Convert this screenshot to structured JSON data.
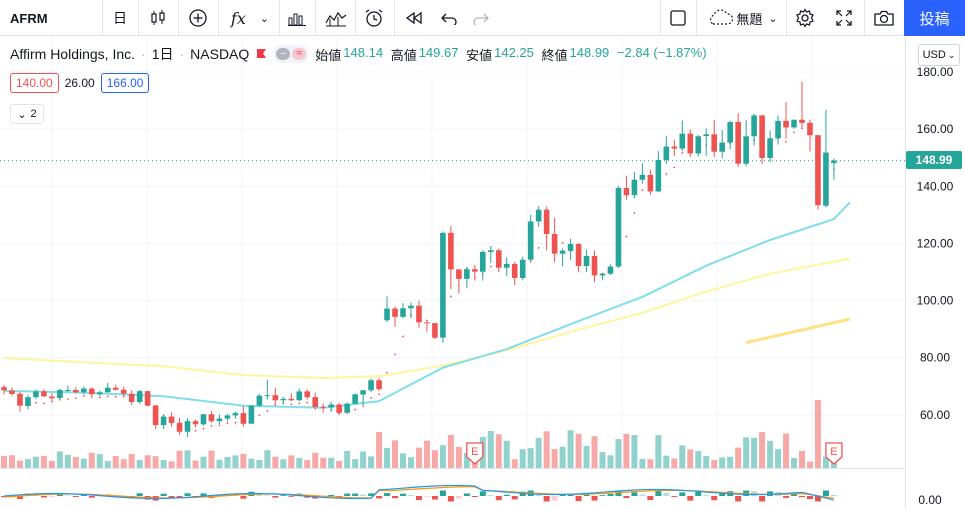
{
  "toolbar": {
    "symbol": "AFRM",
    "interval": "日",
    "indicators_label": "fx",
    "layout_name": "無題",
    "publish_label": "投稿"
  },
  "legend": {
    "name": "Affirm Holdings, Inc.",
    "interval": "1日",
    "exchange": "NASDAQ",
    "open_label": "始値",
    "open": "148.14",
    "high_label": "高値",
    "high": "149.67",
    "low_label": "安値",
    "low": "142.25",
    "close_label": "終値",
    "close": "148.99",
    "change": "−2.84 (−1.87%)"
  },
  "indicator_inputs": [
    "140.00",
    "26.00",
    "166.00"
  ],
  "collapsed_count": "2",
  "currency": "USD",
  "last_price": "148.99",
  "colors": {
    "up": "#26a69a",
    "down": "#ef5350",
    "accent": "#2962ff",
    "ma_fast": "#80deea",
    "ma_slow": "#fff59d",
    "ma_long": "#ffe082"
  },
  "chart_data": {
    "type": "candlestick",
    "y_ticks": [
      "180.00",
      "160.00",
      "140.00",
      "120.00",
      "100.00",
      "80.00",
      "60.00"
    ],
    "ylim": [
      44,
      183
    ],
    "osc_tick": "0.00",
    "candles": [
      [
        69.7,
        70.5,
        67.2,
        68.6
      ],
      [
        68.5,
        69.6,
        66.7,
        67.3
      ],
      [
        67.4,
        68.1,
        61.1,
        63.2
      ],
      [
        63.1,
        67.1,
        62.0,
        66.2
      ],
      [
        66.2,
        68.8,
        65.5,
        68.2
      ],
      [
        68.2,
        69.0,
        66.1,
        66.5
      ],
      [
        66.4,
        67.6,
        64.9,
        65.8
      ],
      [
        65.9,
        69.2,
        65.4,
        68.7
      ],
      [
        68.7,
        70.2,
        68.0,
        68.7
      ],
      [
        68.7,
        69.7,
        67.5,
        67.9
      ],
      [
        67.9,
        70.0,
        67.3,
        69.2
      ],
      [
        69.2,
        69.6,
        66.6,
        67.2
      ],
      [
        67.2,
        68.5,
        66.6,
        67.9
      ],
      [
        67.9,
        71.2,
        67.8,
        69.5
      ],
      [
        69.5,
        70.6,
        68.5,
        68.8
      ],
      [
        68.8,
        69.8,
        66.4,
        67.4
      ],
      [
        67.4,
        68.6,
        63.4,
        64.5
      ],
      [
        64.5,
        68.8,
        63.8,
        68.3
      ],
      [
        68.3,
        68.4,
        63.0,
        63.2
      ],
      [
        63.3,
        63.4,
        55.0,
        56.4
      ],
      [
        56.4,
        60.2,
        55.1,
        59.4
      ],
      [
        59.4,
        60.9,
        55.9,
        57.2
      ],
      [
        57.2,
        58.9,
        53.1,
        54.1
      ],
      [
        54.1,
        58.8,
        52.3,
        57.8
      ],
      [
        57.8,
        58.3,
        55.7,
        56.7
      ],
      [
        56.7,
        60.3,
        56.2,
        60.2
      ],
      [
        60.2,
        61.3,
        57.2,
        57.8
      ],
      [
        57.8,
        60.1,
        56.8,
        58.7
      ],
      [
        58.7,
        60.4,
        57.8,
        59.8
      ],
      [
        59.8,
        61.2,
        58.6,
        60.6
      ],
      [
        60.6,
        63.1,
        55.9,
        56.9
      ],
      [
        56.9,
        63.4,
        56.9,
        63.2
      ],
      [
        63.2,
        67.3,
        62.9,
        66.7
      ],
      [
        66.6,
        72.3,
        65.4,
        66.9
      ],
      [
        66.9,
        69.5,
        63.2,
        65.1
      ],
      [
        65.1,
        66.3,
        63.6,
        65.6
      ],
      [
        65.6,
        67.5,
        64.8,
        65.1
      ],
      [
        65.1,
        69.2,
        64.8,
        68.2
      ],
      [
        68.2,
        68.9,
        65.4,
        66.2
      ],
      [
        66.2,
        67.8,
        61.7,
        62.7
      ],
      [
        62.7,
        64.0,
        60.8,
        62.6
      ],
      [
        62.6,
        64.6,
        61.1,
        63.6
      ],
      [
        63.6,
        64.2,
        60.4,
        60.7
      ],
      [
        60.7,
        64.4,
        60.7,
        63.9
      ],
      [
        63.9,
        67.5,
        63.6,
        67.2
      ],
      [
        67.1,
        68.6,
        63.5,
        68.6
      ],
      [
        68.6,
        72.7,
        68.0,
        72.1
      ],
      [
        72.1,
        73.0,
        68.3,
        69.0
      ],
      [
        93.1,
        101.5,
        92.4,
        97.2
      ],
      [
        97.2,
        97.9,
        90.8,
        94.3
      ],
      [
        94.3,
        99.1,
        93.8,
        97.3
      ],
      [
        97.3,
        99.3,
        93.9,
        98.2
      ],
      [
        98.2,
        100.0,
        90.5,
        92.4
      ],
      [
        92.4,
        92.4,
        89.1,
        92.1
      ],
      [
        92.1,
        92.2,
        86.6,
        87.0
      ],
      [
        87.0,
        124.2,
        85.3,
        123.7
      ],
      [
        123.7,
        126.0,
        104.0,
        110.9
      ],
      [
        110.9,
        111.0,
        102.5,
        107.6
      ],
      [
        107.6,
        111.7,
        104.3,
        111.0
      ],
      [
        111.0,
        112.5,
        107.0,
        110.1
      ],
      [
        110.1,
        117.6,
        107.0,
        117.0
      ],
      [
        117.0,
        119.1,
        113.2,
        117.6
      ],
      [
        117.6,
        118.2,
        110.0,
        111.5
      ],
      [
        111.5,
        115.1,
        108.6,
        112.8
      ],
      [
        112.8,
        113.5,
        105.4,
        107.9
      ],
      [
        107.9,
        115.4,
        107.1,
        114.3
      ],
      [
        114.3,
        130.0,
        113.4,
        127.7
      ],
      [
        127.7,
        133.1,
        125.8,
        131.8
      ],
      [
        131.8,
        132.9,
        117.6,
        123.3
      ],
      [
        123.3,
        129.0,
        113.5,
        116.4
      ],
      [
        116.4,
        118.2,
        112.0,
        117.5
      ],
      [
        117.4,
        121.6,
        114.3,
        119.8
      ],
      [
        119.8,
        120.1,
        109.9,
        112.1
      ],
      [
        112.1,
        117.8,
        110.0,
        115.6
      ],
      [
        115.6,
        117.6,
        106.4,
        108.8
      ],
      [
        108.8,
        109.5,
        107.3,
        109.4
      ],
      [
        109.4,
        112.6,
        109.0,
        111.9
      ],
      [
        111.9,
        140.1,
        111.4,
        139.4
      ],
      [
        139.4,
        143.7,
        135.3,
        136.9
      ],
      [
        136.9,
        145.0,
        135.8,
        142.3
      ],
      [
        142.3,
        148.0,
        140.9,
        144.0
      ],
      [
        144.0,
        145.8,
        137.0,
        138.2
      ],
      [
        138.2,
        152.3,
        137.9,
        149.2
      ],
      [
        149.2,
        157.7,
        147.9,
        153.9
      ],
      [
        153.9,
        156.3,
        150.6,
        153.2
      ],
      [
        153.2,
        163.0,
        152.3,
        158.4
      ],
      [
        158.4,
        159.9,
        150.3,
        151.5
      ],
      [
        151.5,
        157.9,
        150.4,
        157.5
      ],
      [
        157.6,
        160.2,
        150.7,
        158.2
      ],
      [
        158.2,
        163.2,
        150.3,
        152.1
      ],
      [
        152.1,
        159.7,
        149.8,
        155.3
      ],
      [
        155.3,
        162.8,
        153.0,
        162.5
      ],
      [
        162.5,
        165.6,
        146.8,
        147.9
      ],
      [
        147.9,
        163.2,
        147.0,
        157.5
      ],
      [
        157.5,
        165.4,
        154.3,
        164.8
      ],
      [
        164.8,
        165.0,
        147.8,
        149.9
      ],
      [
        149.9,
        159.5,
        148.4,
        156.8
      ],
      [
        156.8,
        164.8,
        154.6,
        162.9
      ],
      [
        162.9,
        169.4,
        156.7,
        160.6
      ],
      [
        160.6,
        163.3,
        160.1,
        163.3
      ],
      [
        163.3,
        176.6,
        160.0,
        162.2
      ],
      [
        162.2,
        163.3,
        152.2,
        157.9
      ],
      [
        157.9,
        157.9,
        131.9,
        133.4
      ],
      [
        133.2,
        166.8,
        132.6,
        151.8
      ],
      [
        148.1,
        149.7,
        142.3,
        149.0
      ]
    ],
    "ma_fast": [
      [
        0,
        68.4
      ],
      [
        10,
        67.8
      ],
      [
        20,
        66.5
      ],
      [
        30,
        63.2
      ],
      [
        40,
        62.5
      ],
      [
        47,
        64.8
      ],
      [
        55,
        76.5
      ],
      [
        63,
        83.0
      ],
      [
        72,
        92.8
      ],
      [
        80,
        101.3
      ],
      [
        88,
        112.2
      ],
      [
        96,
        121.2
      ],
      [
        104,
        128.5
      ],
      [
        106,
        134.4
      ]
    ],
    "ma_slow": [
      [
        0,
        79.9
      ],
      [
        10,
        78.4
      ],
      [
        20,
        77.0
      ],
      [
        30,
        73.9
      ],
      [
        40,
        72.9
      ],
      [
        47,
        73.5
      ],
      [
        55,
        77.2
      ],
      [
        63,
        82.6
      ],
      [
        72,
        89.8
      ],
      [
        80,
        95.7
      ],
      [
        88,
        103.1
      ],
      [
        96,
        109.4
      ],
      [
        106,
        114.7
      ]
    ],
    "ma_long": [
      [
        93,
        85.3
      ],
      [
        106,
        93.5
      ]
    ]
  }
}
